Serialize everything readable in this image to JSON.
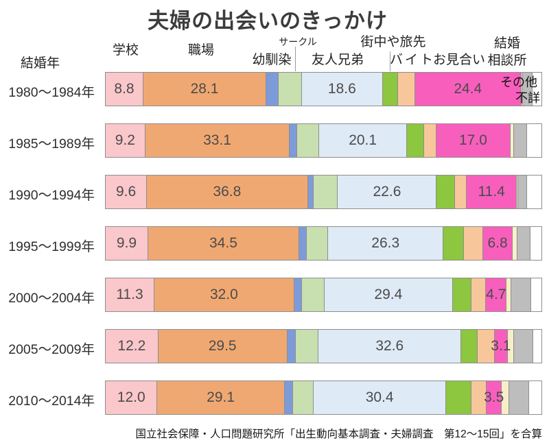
{
  "title": "夫婦の出会いのきっかけ",
  "row_axis_label": "結婚年",
  "footer": "国立社会保障・人口問題研究所「出生動向基本調査・夫婦調査　第12〜15回」を合算",
  "header_display": {
    "marriage_agency_line1": "結婚",
    "marriage_agency_line2": "相談所"
  },
  "chart_data": {
    "type": "bar",
    "variant": "stacked-horizontal",
    "unit": "percent",
    "axis_range": [
      0,
      100
    ],
    "categories": [
      "1980〜1984年",
      "1985〜1989年",
      "1990〜1994年",
      "1995〜1999年",
      "2000〜2004年",
      "2005〜2009年",
      "2010〜2014年"
    ],
    "series": [
      {
        "key": "school",
        "name": "学校",
        "color": "#FAC7CB",
        "show_values": true,
        "values": [
          8.8,
          9.2,
          9.6,
          9.9,
          11.3,
          12.2,
          12.0
        ]
      },
      {
        "key": "workplace",
        "name": "職場",
        "color": "#F0A872",
        "show_values": true,
        "values": [
          28.1,
          33.1,
          36.8,
          34.5,
          32.0,
          29.5,
          29.1
        ]
      },
      {
        "key": "childhood-friend",
        "name": "幼馴染",
        "color": "#7E9BD9",
        "show_values": false,
        "values": [
          2.8,
          1.7,
          1.4,
          1.7,
          1.7,
          1.9,
          1.9
        ]
      },
      {
        "key": "club",
        "name": "サークル",
        "color": "#C8DFAF",
        "show_values": false,
        "values": [
          5.3,
          5.0,
          5.5,
          5.0,
          5.2,
          5.3,
          4.7
        ]
      },
      {
        "key": "friends-siblings",
        "name": "友人兄弟",
        "color": "#DEEAF6",
        "show_values": true,
        "values": [
          18.6,
          20.1,
          22.6,
          26.3,
          29.4,
          32.6,
          30.4
        ]
      },
      {
        "key": "town-travel",
        "name": "街中や旅先",
        "color": "#8DC63F",
        "show_values": false,
        "values": [
          3.4,
          3.9,
          4.2,
          4.7,
          4.2,
          3.8,
          5.8
        ]
      },
      {
        "key": "part-time-job",
        "name": "バイト",
        "color": "#F7C79B",
        "show_values": false,
        "values": [
          3.9,
          2.8,
          2.7,
          4.4,
          3.4,
          3.8,
          3.4
        ]
      },
      {
        "key": "arranged-meeting",
        "name": "お見合い",
        "color": "#F85FBD",
        "show_values": true,
        "values": [
          24.4,
          17.0,
          11.4,
          6.8,
          4.7,
          3.1,
          3.5
        ]
      },
      {
        "key": "marriage-agency",
        "name": "結婚相談所",
        "color": "#F8EFC9",
        "show_values": false,
        "values": [
          0.3,
          0.8,
          0.3,
          1.1,
          1.1,
          1.3,
          1.6
        ]
      },
      {
        "key": "other",
        "name": "その他",
        "color": "#BDBDBD",
        "show_values": false,
        "values": [
          2.2,
          3.0,
          2.0,
          3.0,
          4.5,
          4.5,
          4.6
        ]
      },
      {
        "key": "unknown",
        "name": "不詳",
        "color": "#FFFFFF",
        "show_values": false,
        "values": [
          2.2,
          3.4,
          3.5,
          2.6,
          2.5,
          2.0,
          3.0
        ]
      }
    ]
  }
}
